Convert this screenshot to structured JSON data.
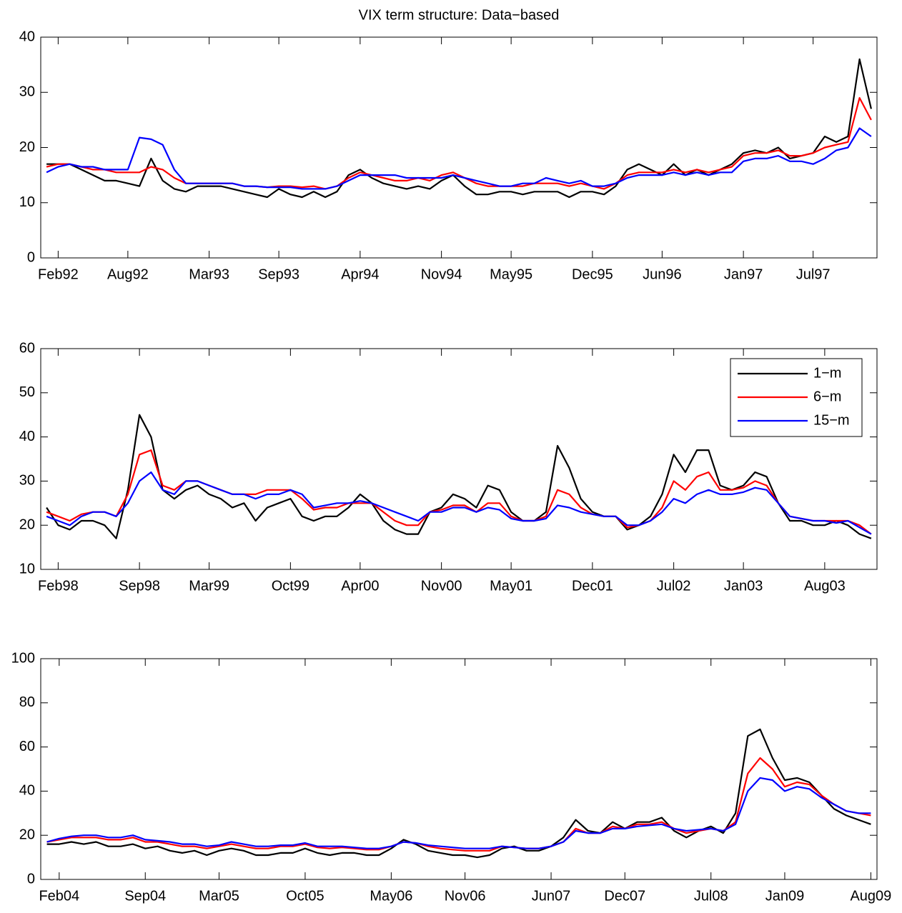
{
  "chart_data": [
    {
      "type": "line",
      "title": "VIX term structure: Data−based",
      "x": [
        "Jan92",
        "Feb92",
        "Mar92",
        "Apr92",
        "May92",
        "Jun92",
        "Jul92",
        "Aug92",
        "Sep92",
        "Oct92",
        "Nov92",
        "Dec92",
        "Jan93",
        "Feb93",
        "Mar93",
        "Apr93",
        "May93",
        "Jun93",
        "Jul93",
        "Aug93",
        "Sep93",
        "Oct93",
        "Nov93",
        "Dec93",
        "Jan94",
        "Feb94",
        "Mar94",
        "Apr94",
        "May94",
        "Jun94",
        "Jul94",
        "Aug94",
        "Sep94",
        "Oct94",
        "Nov94",
        "Dec94",
        "Jan95",
        "Feb95",
        "Mar95",
        "Apr95",
        "May95",
        "Jun95",
        "Jul95",
        "Aug95",
        "Sep95",
        "Oct95",
        "Nov95",
        "Dec95",
        "Jan96",
        "Feb96",
        "Mar96",
        "Apr96",
        "May96",
        "Jun96",
        "Jul96",
        "Aug96",
        "Sep96",
        "Oct96",
        "Nov96",
        "Dec96",
        "Jan97",
        "Feb97",
        "Mar97",
        "Apr97",
        "May97",
        "Jun97",
        "Jul97",
        "Aug97",
        "Sep97",
        "Oct97",
        "Nov97",
        "Dec97"
      ],
      "xticks": [
        "Feb92",
        "Aug92",
        "Mar93",
        "Sep93",
        "Apr94",
        "Nov94",
        "May95",
        "Dec95",
        "Jun96",
        "Jan97",
        "Jul97"
      ],
      "ylim": [
        0,
        40
      ],
      "yticks": [
        0,
        10,
        20,
        30,
        40
      ],
      "series": [
        {
          "color": "#000000",
          "values": [
            17,
            17,
            17,
            16,
            15,
            14,
            14,
            13.5,
            13,
            18,
            14,
            12.5,
            12,
            13,
            13,
            13,
            12.5,
            12,
            11.5,
            11,
            12.5,
            11.5,
            11,
            12,
            11,
            12,
            15,
            16,
            14.5,
            13.5,
            13,
            12.5,
            13,
            12.5,
            14,
            15,
            13,
            11.5,
            11.5,
            12,
            12,
            11.5,
            12,
            12,
            12,
            11,
            12,
            12,
            11.5,
            13,
            16,
            17,
            16,
            15,
            17,
            15,
            16,
            15,
            16,
            17,
            19,
            19.5,
            19,
            20,
            18,
            18.5,
            19,
            22,
            21,
            22,
            36,
            27
          ]
        },
        {
          "color": "#ff0000",
          "values": [
            16.5,
            17,
            17,
            16.5,
            16,
            16,
            15.5,
            15.5,
            15.5,
            16.5,
            16,
            14.5,
            13.5,
            13.5,
            13.5,
            13.5,
            13.5,
            13,
            13,
            12.8,
            13,
            13,
            12.8,
            13,
            12.5,
            13,
            14.5,
            15.5,
            15,
            14.5,
            14,
            14,
            14.5,
            14,
            15,
            15.5,
            14.5,
            13.5,
            13,
            13,
            13,
            13,
            13.5,
            13.5,
            13.5,
            13,
            13.5,
            13,
            12.5,
            13.5,
            15,
            15.5,
            15.5,
            15.5,
            16,
            15.5,
            16,
            15.5,
            16,
            16.5,
            18.5,
            19,
            19,
            19.5,
            18.5,
            18.5,
            19,
            20,
            20.5,
            21,
            29,
            25
          ]
        },
        {
          "color": "#0000ff",
          "values": [
            15.5,
            16.5,
            17,
            16.5,
            16.5,
            16,
            16,
            16,
            21.8,
            21.5,
            20.5,
            16,
            13.5,
            13.5,
            13.5,
            13.5,
            13.5,
            13,
            13,
            12.8,
            12.8,
            12.8,
            12.5,
            12.5,
            12.5,
            13,
            14,
            15,
            15,
            15,
            15,
            14.5,
            14.5,
            14.5,
            14.5,
            15,
            14.5,
            14,
            13.5,
            13,
            13,
            13.5,
            13.5,
            14.5,
            14,
            13.5,
            14,
            13,
            13,
            13.5,
            14.5,
            15,
            15,
            15,
            15.5,
            15,
            15.5,
            15,
            15.5,
            15.5,
            17.5,
            18,
            18,
            18.5,
            17.5,
            17.5,
            17,
            18,
            19.5,
            20,
            23.5,
            22
          ]
        }
      ]
    },
    {
      "type": "line",
      "x": [
        "Jan98",
        "Feb98",
        "Mar98",
        "Apr98",
        "May98",
        "Jun98",
        "Jul98",
        "Aug98",
        "Sep98",
        "Oct98",
        "Nov98",
        "Dec98",
        "Jan99",
        "Feb99",
        "Mar99",
        "Apr99",
        "May99",
        "Jun99",
        "Jul99",
        "Aug99",
        "Sep99",
        "Oct99",
        "Nov99",
        "Dec99",
        "Jan00",
        "Feb00",
        "Mar00",
        "Apr00",
        "May00",
        "Jun00",
        "Jul00",
        "Aug00",
        "Sep00",
        "Oct00",
        "Nov00",
        "Dec00",
        "Jan01",
        "Feb01",
        "Mar01",
        "Apr01",
        "May01",
        "Jun01",
        "Jul01",
        "Aug01",
        "Sep01",
        "Oct01",
        "Nov01",
        "Dec01",
        "Jan02",
        "Feb02",
        "Mar02",
        "Apr02",
        "May02",
        "Jun02",
        "Jul02",
        "Aug02",
        "Sep02",
        "Oct02",
        "Nov02",
        "Dec02",
        "Jan03",
        "Feb03",
        "Mar03",
        "Apr03",
        "May03",
        "Jun03",
        "Jul03",
        "Aug03",
        "Sep03",
        "Oct03",
        "Nov03",
        "Dec03"
      ],
      "xticks": [
        "Feb98",
        "Sep98",
        "Mar99",
        "Oct99",
        "Apr00",
        "Nov00",
        "May01",
        "Dec01",
        "Jul02",
        "Jan03",
        "Aug03"
      ],
      "ylim": [
        10,
        60
      ],
      "yticks": [
        10,
        20,
        30,
        40,
        50,
        60
      ],
      "legend": "northeast",
      "series": [
        {
          "name": "1−m",
          "color": "#000000",
          "values": [
            24,
            20,
            19,
            21,
            21,
            20,
            17,
            28,
            45,
            40,
            28,
            26,
            28,
            29,
            27,
            26,
            24,
            25,
            21,
            24,
            25,
            26,
            22,
            21,
            22,
            22,
            24,
            27,
            25,
            21,
            19,
            18,
            18,
            23,
            24,
            27,
            26,
            24,
            29,
            28,
            23,
            21,
            21,
            23,
            38,
            33,
            26,
            23,
            22,
            22,
            19,
            20,
            22,
            27,
            36,
            32,
            37,
            37,
            29,
            28,
            29,
            32,
            31,
            25,
            21,
            21,
            20,
            20,
            21,
            20,
            18,
            17
          ]
        },
        {
          "name": "6−m",
          "color": "#ff0000",
          "values": [
            23,
            22,
            21,
            22.5,
            23,
            23,
            22,
            27,
            36,
            37,
            29,
            28,
            30,
            30,
            29,
            28,
            27,
            27,
            27,
            28,
            28,
            28,
            26,
            23.5,
            24,
            24,
            25,
            25,
            25,
            23,
            21,
            20,
            20,
            23,
            23.5,
            24.5,
            24.5,
            23,
            25,
            25,
            22,
            21,
            21,
            22,
            28,
            27,
            24,
            22.5,
            22,
            22,
            19.5,
            20,
            21,
            24,
            30,
            28,
            31,
            32,
            28,
            28,
            28.5,
            30,
            29,
            25,
            22,
            21.5,
            21,
            21,
            21,
            21,
            20,
            18
          ]
        },
        {
          "name": "15−m",
          "color": "#0000ff",
          "values": [
            22,
            21,
            20,
            22,
            23,
            23,
            22,
            25,
            30,
            32,
            28,
            27,
            30,
            30,
            29,
            28,
            27,
            27,
            26,
            27,
            27,
            28,
            27,
            24,
            24.5,
            25,
            25,
            25.5,
            25,
            24,
            23,
            22,
            21,
            23,
            23,
            24,
            24,
            23,
            24,
            23.5,
            21.5,
            21,
            21,
            21.5,
            24.5,
            24,
            23,
            22.5,
            22,
            22,
            20,
            20,
            21,
            23,
            26,
            25,
            27,
            28,
            27,
            27,
            27.5,
            28.5,
            28,
            25,
            22,
            21.5,
            21,
            21,
            20.5,
            21,
            19.5,
            18
          ]
        }
      ]
    },
    {
      "type": "line",
      "x": [
        "Jan04",
        "Feb04",
        "Mar04",
        "Apr04",
        "May04",
        "Jun04",
        "Jul04",
        "Aug04",
        "Sep04",
        "Oct04",
        "Nov04",
        "Dec04",
        "Jan05",
        "Feb05",
        "Mar05",
        "Apr05",
        "May05",
        "Jun05",
        "Jul05",
        "Aug05",
        "Sep05",
        "Oct05",
        "Nov05",
        "Dec05",
        "Jan06",
        "Feb06",
        "Mar06",
        "Apr06",
        "May06",
        "Jun06",
        "Jul06",
        "Aug06",
        "Sep06",
        "Oct06",
        "Nov06",
        "Dec06",
        "Jan07",
        "Feb07",
        "Mar07",
        "Apr07",
        "May07",
        "Jun07",
        "Jul07",
        "Aug07",
        "Sep07",
        "Oct07",
        "Nov07",
        "Dec07",
        "Jan08",
        "Feb08",
        "Mar08",
        "Apr08",
        "May08",
        "Jun08",
        "Jul08",
        "Aug08",
        "Sep08",
        "Oct08",
        "Nov08",
        "Dec08",
        "Jan09",
        "Feb09",
        "Mar09",
        "Apr09",
        "May09",
        "Jun09",
        "Jul09",
        "Aug09"
      ],
      "xticks": [
        "Feb04",
        "Sep04",
        "Mar05",
        "Oct05",
        "May06",
        "Nov06",
        "Jun07",
        "Dec07",
        "Jul08",
        "Jan09",
        "Aug09"
      ],
      "ylim": [
        0,
        100
      ],
      "yticks": [
        0,
        20,
        40,
        60,
        80,
        100
      ],
      "series": [
        {
          "color": "#000000",
          "values": [
            16,
            16,
            17,
            16,
            17,
            15,
            15,
            16,
            14,
            15,
            13,
            12,
            13,
            11,
            13,
            14,
            13,
            11,
            11,
            12,
            12,
            14,
            12,
            11,
            12,
            12,
            11,
            11,
            14,
            18,
            16,
            13,
            12,
            11,
            11,
            10,
            11,
            14,
            15,
            13,
            13,
            15,
            19,
            27,
            22,
            21,
            26,
            23,
            26,
            26,
            28,
            22,
            19,
            22,
            24,
            21,
            30,
            65,
            68,
            55,
            45,
            46,
            44,
            38,
            32,
            29,
            27,
            25
          ]
        },
        {
          "color": "#ff0000",
          "values": [
            17,
            18,
            19,
            19,
            19,
            18,
            18,
            19,
            17,
            17,
            16,
            15,
            15,
            14,
            15,
            16,
            15,
            14,
            14,
            15,
            15,
            16,
            14.5,
            14,
            14.5,
            14,
            13.5,
            13.5,
            15,
            17,
            16.5,
            15,
            14,
            13.5,
            13,
            13,
            13,
            15,
            14.5,
            14,
            14,
            15,
            17,
            23,
            21,
            21,
            24,
            23,
            25,
            25,
            26,
            23,
            21,
            22,
            23,
            22,
            26,
            48,
            55,
            50,
            42,
            44,
            43,
            38,
            34,
            31,
            30,
            29
          ]
        },
        {
          "color": "#0000ff",
          "values": [
            17,
            18.5,
            19.5,
            20,
            20,
            19,
            19,
            20,
            18,
            17.5,
            17,
            16,
            16,
            15,
            15.5,
            17,
            16,
            15,
            15,
            15.5,
            15.5,
            16.5,
            15,
            15,
            15,
            14.5,
            14,
            14,
            15,
            17,
            16.5,
            15.5,
            15,
            14.5,
            14,
            14,
            14,
            15,
            14.5,
            14,
            14,
            15,
            17,
            22,
            21,
            21,
            23,
            23,
            24,
            24.5,
            25,
            23,
            22,
            22.5,
            23,
            22,
            25,
            40,
            46,
            45,
            40,
            42,
            41,
            37,
            34,
            31,
            30,
            30
          ]
        }
      ]
    }
  ]
}
